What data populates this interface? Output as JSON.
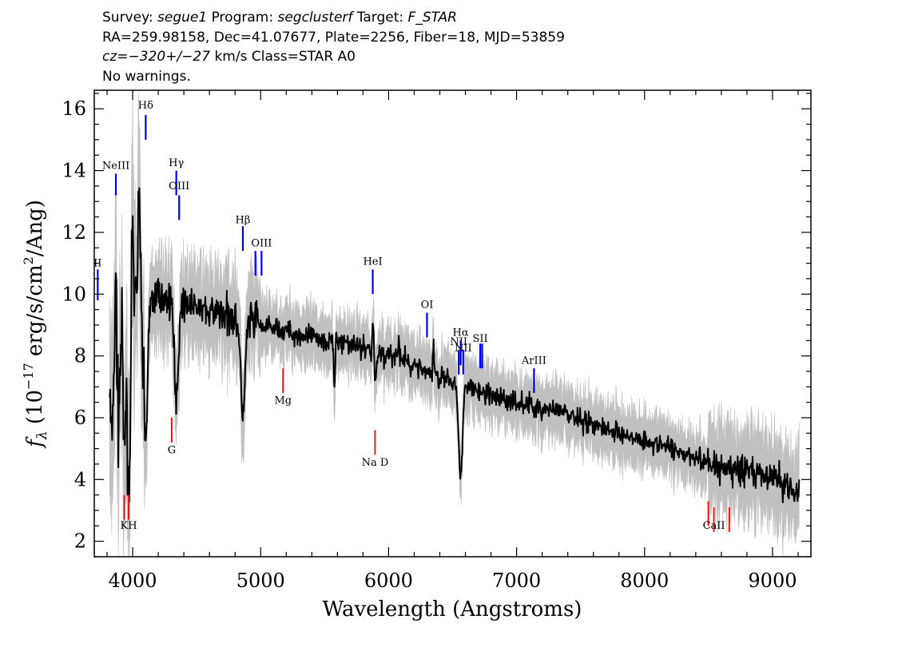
{
  "header": {
    "survey_label": "Survey:",
    "survey": "segue1",
    "program_label": "Program:",
    "program": "segclusterf",
    "target_label": "Target:",
    "target": "F_STAR",
    "line2": "RA=259.98158, Dec=41.07677, Plate=2256, Fiber=18, MJD=53859",
    "cz_prefix": "cz=",
    "cz_value": "−320+/−27",
    "cz_suffix": " km/s Class=STAR A0",
    "line4": "No warnings."
  },
  "chart_data": {
    "type": "line",
    "xlabel": "Wavelength (Angstroms)",
    "ylabel_parts": [
      "f",
      "λ",
      " (10",
      "−17",
      " erg/s/cm",
      "2",
      "/Ang)"
    ],
    "xlim": [
      3700,
      9300
    ],
    "ylim": [
      1.5,
      16.6
    ],
    "x_ticks": [
      4000,
      5000,
      6000,
      7000,
      8000,
      9000
    ],
    "y_ticks": [
      2,
      4,
      6,
      8,
      10,
      12,
      14,
      16
    ],
    "colors": {
      "flux": "#000000",
      "error_band": "#c0c0c0",
      "emission": "#0000ff",
      "absorption": "#ff0000"
    },
    "continuum_knots": [
      [
        3800,
        8.3
      ],
      [
        3900,
        8.8
      ],
      [
        4000,
        10.0
      ],
      [
        4200,
        9.9
      ],
      [
        4400,
        9.7
      ],
      [
        4600,
        9.4
      ],
      [
        4800,
        9.3
      ],
      [
        5000,
        9.0
      ],
      [
        5200,
        8.8
      ],
      [
        5400,
        8.6
      ],
      [
        5600,
        8.5
      ],
      [
        5800,
        8.3
      ],
      [
        6000,
        8.0
      ],
      [
        6200,
        7.7
      ],
      [
        6400,
        7.3
      ],
      [
        6600,
        7.0
      ],
      [
        6800,
        6.7
      ],
      [
        7000,
        6.5
      ],
      [
        7200,
        6.3
      ],
      [
        7400,
        6.1
      ],
      [
        7600,
        5.8
      ],
      [
        7800,
        5.5
      ],
      [
        8000,
        5.3
      ],
      [
        8200,
        5.0
      ],
      [
        8400,
        4.7
      ],
      [
        8600,
        4.4
      ],
      [
        8800,
        4.2
      ],
      [
        9000,
        4.1
      ],
      [
        9200,
        3.6
      ]
    ],
    "absorption_features": [
      [
        3835,
        3.5,
        10
      ],
      [
        3889,
        2.6,
        12
      ],
      [
        3934,
        4.5,
        8
      ],
      [
        3970,
        5.5,
        14
      ],
      [
        4102,
        4.5,
        16
      ],
      [
        4341,
        3.0,
        16
      ],
      [
        4861,
        3.0,
        18
      ],
      [
        5577,
        1.5,
        6
      ],
      [
        6563,
        3.0,
        14
      ],
      [
        5893,
        1.2,
        10
      ]
    ],
    "spikes": [
      [
        4050,
        4.0,
        6
      ],
      [
        3995,
        3.0,
        6
      ],
      [
        3870,
        2.5,
        5
      ],
      [
        5880,
        1.5,
        6
      ],
      [
        6350,
        1.0,
        5
      ],
      [
        6080,
        0.6,
        5
      ]
    ],
    "spectral_lines": [
      {
        "name": "NeII",
        "wave": 3727,
        "y_top": 10.8,
        "y_bot": 9.8,
        "color": "emission",
        "label": "II",
        "label_y": 10.9
      },
      {
        "name": "NeIII",
        "wave": 3869,
        "y_top": 13.9,
        "y_bot": 13.2,
        "color": "emission",
        "label": "NeIII",
        "label_y": 14.05
      },
      {
        "name": "Hdelta",
        "wave": 4102,
        "y_top": 15.8,
        "y_bot": 15.0,
        "color": "emission",
        "label": "Hδ",
        "label_y": 16.0
      },
      {
        "name": "Hgamma",
        "wave": 4341,
        "y_top": 14.0,
        "y_bot": 13.2,
        "color": "emission",
        "label": "Hγ",
        "label_y": 14.15
      },
      {
        "name": "OIII_4363",
        "wave": 4363,
        "y_top": 13.2,
        "y_bot": 12.4,
        "color": "emission",
        "label": "OIII",
        "label_y": 13.4
      },
      {
        "name": "Hbeta",
        "wave": 4861,
        "y_top": 12.2,
        "y_bot": 11.4,
        "color": "emission",
        "label": "Hβ",
        "label_y": 12.3
      },
      {
        "name": "OIII_4959",
        "wave": 4959,
        "y_top": 11.4,
        "y_bot": 10.6,
        "color": "emission",
        "label": "",
        "label_y": 0
      },
      {
        "name": "OIII_5007",
        "wave": 5007,
        "y_top": 11.4,
        "y_bot": 10.6,
        "color": "emission",
        "label": "OIII",
        "label_y": 11.55
      },
      {
        "name": "HeI",
        "wave": 5876,
        "y_top": 10.8,
        "y_bot": 10.0,
        "color": "emission",
        "label": "HeI",
        "label_y": 10.95
      },
      {
        "name": "OI",
        "wave": 6300,
        "y_top": 9.4,
        "y_bot": 8.6,
        "color": "emission",
        "label": "OI",
        "label_y": 9.55
      },
      {
        "name": "NII_6548",
        "wave": 6548,
        "y_top": 8.2,
        "y_bot": 7.4,
        "color": "emission",
        "label": "NII",
        "label_y": 8.35
      },
      {
        "name": "Halpha",
        "wave": 6563,
        "y_top": 8.5,
        "y_bot": 7.7,
        "color": "emission",
        "label": "Hα",
        "label_y": 8.65
      },
      {
        "name": "NII_6583",
        "wave": 6583,
        "y_top": 8.2,
        "y_bot": 7.4,
        "color": "emission",
        "label": "NII",
        "label_y": 8.15
      },
      {
        "name": "SII_6716",
        "wave": 6716,
        "y_top": 8.4,
        "y_bot": 7.6,
        "color": "emission",
        "label": "SII",
        "label_y": 8.45
      },
      {
        "name": "SII_6731",
        "wave": 6731,
        "y_top": 8.4,
        "y_bot": 7.6,
        "color": "emission",
        "label": "",
        "label_y": 0
      },
      {
        "name": "ArIII",
        "wave": 7136,
        "y_top": 7.6,
        "y_bot": 6.8,
        "color": "emission",
        "label": "ArIII",
        "label_y": 7.75
      },
      {
        "name": "K",
        "wave": 3934,
        "y_top": 3.5,
        "y_bot": 2.7,
        "color": "absorption",
        "label": "",
        "label_y": 0
      },
      {
        "name": "H",
        "wave": 3969,
        "y_top": 3.5,
        "y_bot": 2.7,
        "color": "absorption",
        "label": "KH",
        "label_y": 2.4
      },
      {
        "name": "G",
        "wave": 4305,
        "y_top": 6.0,
        "y_bot": 5.2,
        "color": "absorption",
        "label": "G",
        "label_y": 4.85
      },
      {
        "name": "Mg",
        "wave": 5175,
        "y_top": 7.6,
        "y_bot": 6.8,
        "color": "absorption",
        "label": "Mg",
        "label_y": 6.45
      },
      {
        "name": "NaD",
        "wave": 5894,
        "y_top": 5.6,
        "y_bot": 4.8,
        "color": "absorption",
        "label": "Na D",
        "label_y": 4.45
      },
      {
        "name": "CaII_8498",
        "wave": 8498,
        "y_top": 3.3,
        "y_bot": 2.5,
        "color": "absorption",
        "label": "",
        "label_y": 0
      },
      {
        "name": "CaII_8542",
        "wave": 8542,
        "y_top": 3.1,
        "y_bot": 2.3,
        "color": "absorption",
        "label": "CaII",
        "label_y": 2.4
      },
      {
        "name": "CaII_8662",
        "wave": 8662,
        "y_top": 3.1,
        "y_bot": 2.3,
        "color": "absorption",
        "label": "",
        "label_y": 0
      }
    ]
  }
}
